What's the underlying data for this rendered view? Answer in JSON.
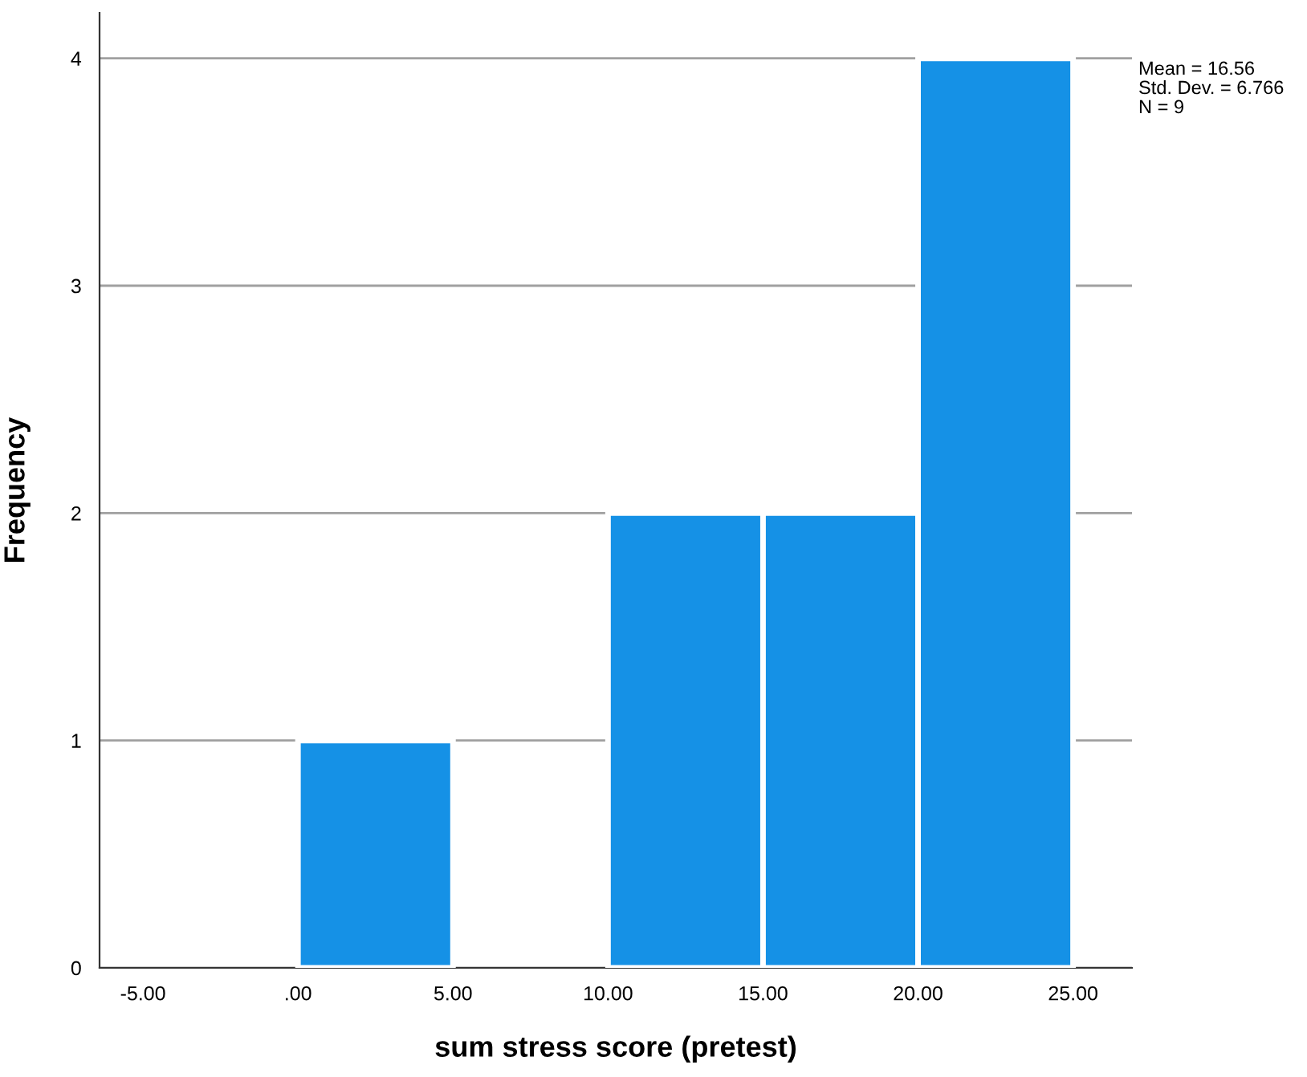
{
  "chart_data": {
    "type": "histogram",
    "xlabel": "sum stress score (pretest)",
    "ylabel": "Frequency",
    "bins": [
      0,
      5,
      10,
      15,
      20,
      25
    ],
    "values": [
      1,
      0,
      2,
      2,
      4
    ],
    "color": "#1591e6",
    "xlim": [
      -6.4,
      26.9
    ],
    "ylim": [
      0,
      4.2
    ],
    "xticks": [
      {
        "value": -5,
        "label": "-5.00"
      },
      {
        "value": 0,
        "label": ".00"
      },
      {
        "value": 5,
        "label": "5.00"
      },
      {
        "value": 10,
        "label": "10.00"
      },
      {
        "value": 15,
        "label": "15.00"
      },
      {
        "value": 20,
        "label": "20.00"
      },
      {
        "value": 25,
        "label": "25.00"
      }
    ],
    "yticks": [
      0,
      1,
      2,
      3,
      4
    ],
    "grid": "y",
    "annotations": [
      "Mean = 16.56",
      "Std. Dev. = 6.766",
      "N = 9"
    ]
  }
}
